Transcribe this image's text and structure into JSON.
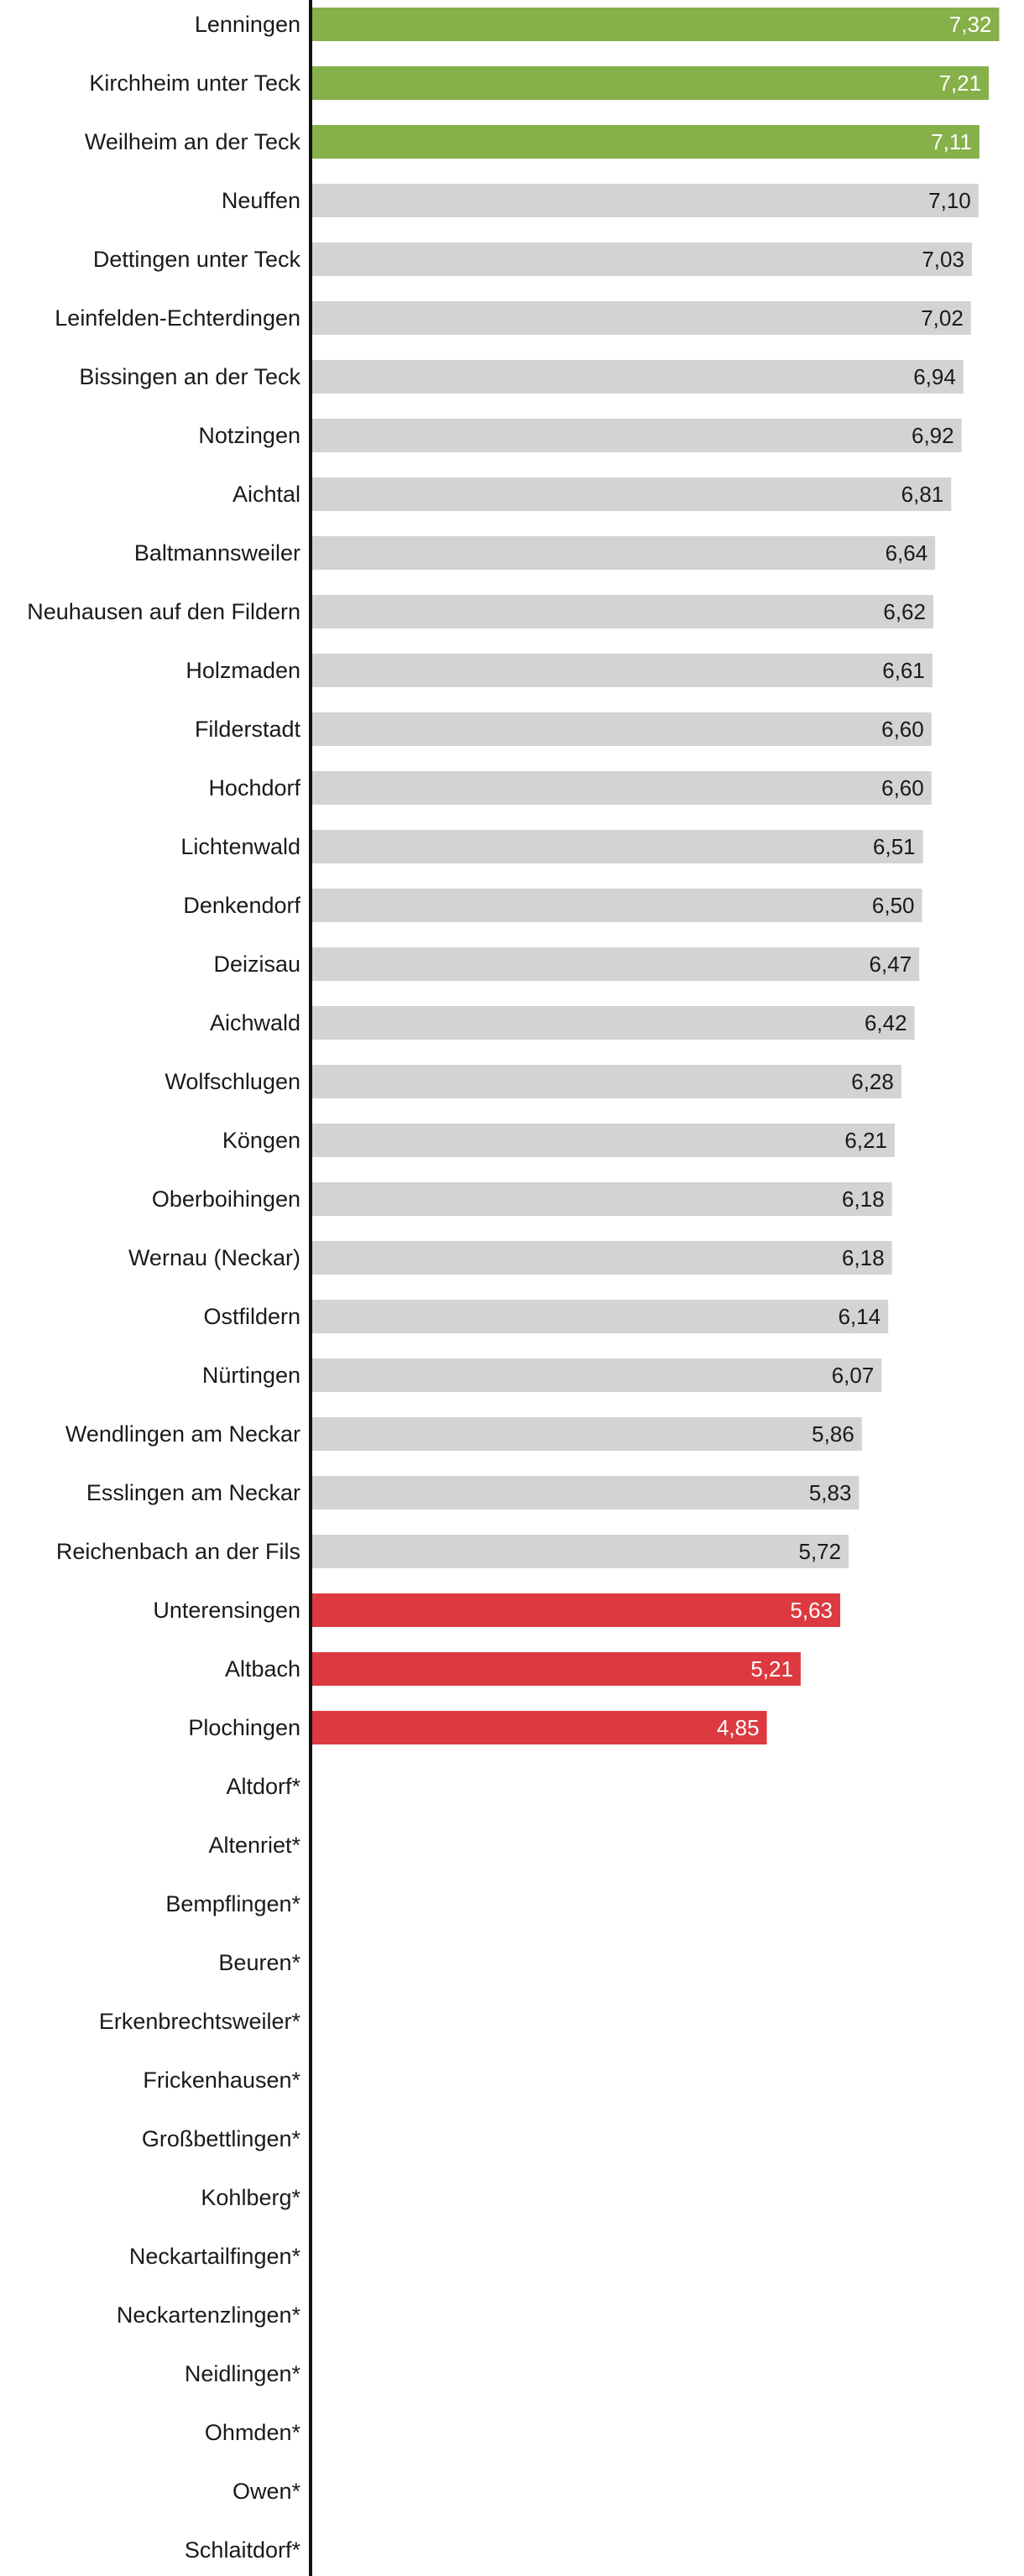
{
  "chart_data": {
    "type": "bar",
    "orientation": "horizontal",
    "title": "",
    "xlabel": "",
    "ylabel": "",
    "xlim": [
      0,
      7.45
    ],
    "grid": false,
    "legend": "none",
    "colors": {
      "top": "#86b049",
      "middle": "#d3d3d3",
      "bottom": "#dc3a40",
      "axis": "#111111",
      "label_dark": "#1a1a1a",
      "label_light": "#ffffff"
    },
    "categories": [
      "Lenningen",
      "Kirchheim unter Teck",
      "Weilheim an der Teck",
      "Neuffen",
      "Dettingen unter Teck",
      "Leinfelden-Echterdingen",
      "Bissingen an der Teck",
      "Notzingen",
      "Aichtal",
      "Baltmannsweiler",
      "Neuhausen auf den Fildern",
      "Holzmaden",
      "Filderstadt",
      "Hochdorf",
      "Lichtenwald",
      "Denkendorf",
      "Deizisau",
      "Aichwald",
      "Wolfschlugen",
      "Köngen",
      "Oberboihingen",
      "Wernau (Neckar)",
      "Ostfildern",
      "Nürtingen",
      "Wendlingen am Neckar",
      "Esslingen am Neckar",
      "Reichenbach an der Fils",
      "Unterensingen",
      "Altbach",
      "Plochingen",
      "Altdorf*",
      "Altenriet*",
      "Bempflingen*",
      "Beuren*",
      "Erkenbrechtsweiler*",
      "Frickenhausen*",
      "Großbettlingen*",
      "Kohlberg*",
      "Neckartailfingen*",
      "Neckartenzlingen*",
      "Neidlingen*",
      "Ohmden*",
      "Owen*",
      "Schlaitdorf*"
    ],
    "values": [
      7.32,
      7.21,
      7.11,
      7.1,
      7.03,
      7.02,
      6.94,
      6.92,
      6.81,
      6.64,
      6.62,
      6.61,
      6.6,
      6.6,
      6.51,
      6.5,
      6.47,
      6.42,
      6.28,
      6.21,
      6.18,
      6.18,
      6.14,
      6.07,
      5.86,
      5.83,
      5.72,
      5.63,
      5.21,
      4.85,
      null,
      null,
      null,
      null,
      null,
      null,
      null,
      null,
      null,
      null,
      null,
      null,
      null,
      null
    ],
    "value_labels": [
      "7,32",
      "7,21",
      "7,11",
      "7,10",
      "7,03",
      "7,02",
      "6,94",
      "6,92",
      "6,81",
      "6,64",
      "6,62",
      "6,61",
      "6,60",
      "6,60",
      "6,51",
      "6,50",
      "6,47",
      "6,42",
      "6,28",
      "6,21",
      "6,18",
      "6,18",
      "6,14",
      "6,07",
      "5,86",
      "5,83",
      "5,72",
      "5,63",
      "5,21",
      "4,85",
      "",
      "",
      "",
      "",
      "",
      "",
      "",
      "",
      "",
      "",
      "",
      "",
      "",
      ""
    ],
    "highlight": [
      "top",
      "top",
      "top",
      "middle",
      "middle",
      "middle",
      "middle",
      "middle",
      "middle",
      "middle",
      "middle",
      "middle",
      "middle",
      "middle",
      "middle",
      "middle",
      "middle",
      "middle",
      "middle",
      "middle",
      "middle",
      "middle",
      "middle",
      "middle",
      "middle",
      "middle",
      "middle",
      "bottom",
      "bottom",
      "bottom",
      "none",
      "none",
      "none",
      "none",
      "none",
      "none",
      "none",
      "none",
      "none",
      "none",
      "none",
      "none",
      "none",
      "none"
    ]
  }
}
